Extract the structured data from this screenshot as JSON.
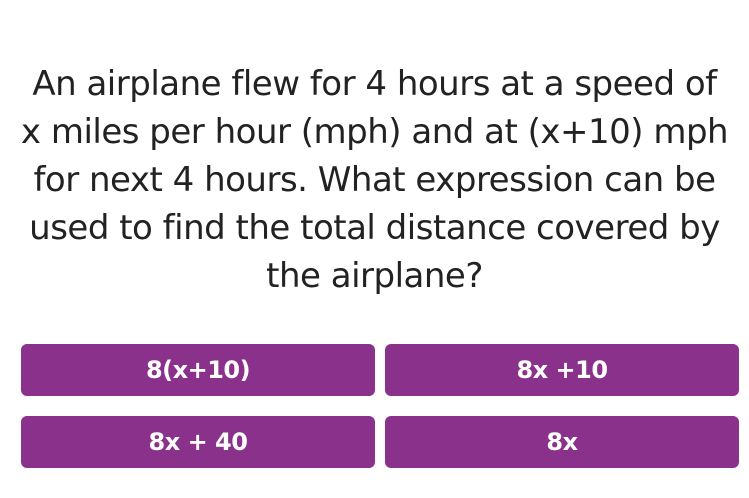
{
  "question": {
    "lines": [
      "An airplane flew for 4 hours at a speed of",
      "x miles per hour (mph) and at (x+10) mph",
      "for next 4 hours. What expression can be",
      "used to find the total distance covered by",
      "the airplane?"
    ]
  },
  "options": [
    "8(x+10)",
    "8x +10",
    "8x + 40",
    "8x"
  ],
  "colors": {
    "option_bg": "#8a318c",
    "option_text": "#ffffff",
    "question_text": "#222222"
  }
}
